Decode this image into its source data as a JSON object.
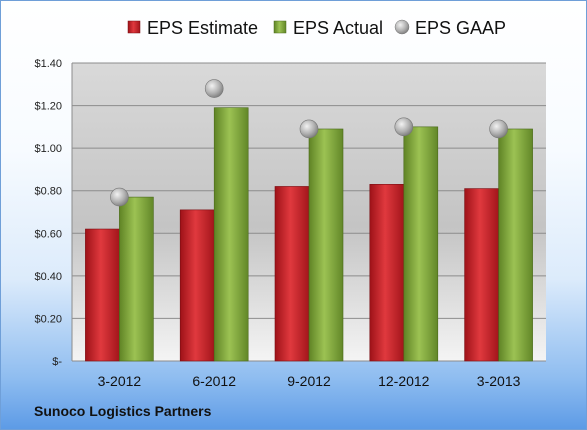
{
  "company": "Sunoco Logistics Partners",
  "legend": [
    {
      "label": "EPS Estimate",
      "color": "#cc1f26"
    },
    {
      "label": "EPS Actual",
      "color": "#7fa535"
    },
    {
      "label": "EPS GAAP",
      "color": "#a6a6a6"
    }
  ],
  "chart_data": {
    "type": "bar",
    "categories": [
      "3-2012",
      "6-2012",
      "9-2012",
      "12-2012",
      "3-2013"
    ],
    "series": [
      {
        "name": "EPS Estimate",
        "type": "bar",
        "values": [
          0.62,
          0.71,
          0.82,
          0.83,
          0.81
        ]
      },
      {
        "name": "EPS Actual",
        "type": "bar",
        "values": [
          0.77,
          1.19,
          1.09,
          1.1,
          1.09
        ]
      },
      {
        "name": "EPS GAAP",
        "type": "scatter",
        "values": [
          0.77,
          1.28,
          1.09,
          1.1,
          1.09
        ]
      }
    ],
    "y_ticks": [
      "$-",
      "$0.20",
      "$0.40",
      "$0.60",
      "$0.80",
      "$1.00",
      "$1.20",
      "$1.40"
    ],
    "ylim": [
      0,
      1.4
    ],
    "grid": true,
    "legend_position": "top"
  }
}
